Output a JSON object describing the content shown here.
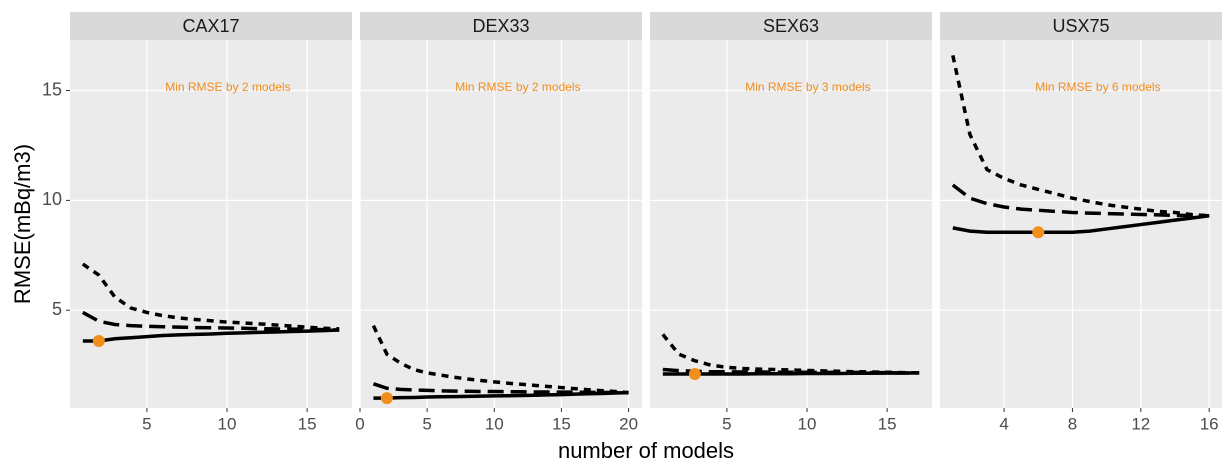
{
  "xlabel": "number of models",
  "ylabel": "RMSE(mBq/m3)",
  "chart_data": [
    {
      "type": "line",
      "title": "CAX17",
      "annotation": "Min RMSE by 2 models",
      "x": [
        1,
        2,
        3,
        4,
        5,
        6,
        7,
        8,
        9,
        10,
        11,
        12,
        13,
        14,
        15,
        16,
        17
      ],
      "xlim": [
        0.2,
        17.8
      ],
      "xticks": [
        5,
        10,
        15
      ],
      "ylim": [
        0.55,
        17.3
      ],
      "yticks": [
        5,
        10,
        15
      ],
      "grid": true,
      "series": [
        {
          "color": "#000000",
          "linestyle": "solid",
          "values": [
            3.6,
            3.6,
            3.7,
            3.75,
            3.8,
            3.85,
            3.88,
            3.9,
            3.92,
            3.95,
            3.97,
            3.99,
            4.01,
            4.03,
            4.05,
            4.07,
            4.1
          ]
        },
        {
          "color": "#000000",
          "linestyle": "longdash",
          "values": [
            4.9,
            4.5,
            4.35,
            4.3,
            4.27,
            4.25,
            4.23,
            4.21,
            4.2,
            4.19,
            4.18,
            4.16,
            4.15,
            4.14,
            4.13,
            4.12,
            4.1
          ]
        },
        {
          "color": "#000000",
          "linestyle": "dashed",
          "values": [
            7.1,
            6.6,
            5.6,
            5.1,
            4.9,
            4.75,
            4.65,
            4.58,
            4.52,
            4.46,
            4.42,
            4.38,
            4.33,
            4.28,
            4.23,
            4.18,
            4.15
          ]
        }
      ],
      "min_point": {
        "x": 2,
        "y": 3.6,
        "color": "#f28e1c"
      }
    },
    {
      "type": "line",
      "title": "DEX33",
      "annotation": "Min RMSE by 2 models",
      "x": [
        1,
        2,
        3,
        4,
        5,
        6,
        7,
        8,
        9,
        10,
        11,
        12,
        13,
        14,
        15,
        16,
        17,
        18,
        19,
        20
      ],
      "xlim": [
        0,
        21
      ],
      "xticks": [
        0,
        5,
        10,
        15,
        20
      ],
      "ylim": [
        0.55,
        17.3
      ],
      "yticks": [
        5,
        10,
        15
      ],
      "grid": true,
      "series": [
        {
          "color": "#000000",
          "linestyle": "solid",
          "values": [
            1.0,
            1.0,
            1.02,
            1.03,
            1.05,
            1.06,
            1.07,
            1.08,
            1.09,
            1.1,
            1.11,
            1.12,
            1.13,
            1.15,
            1.16,
            1.18,
            1.2,
            1.21,
            1.23,
            1.25
          ]
        },
        {
          "color": "#000000",
          "linestyle": "longdash",
          "values": [
            1.65,
            1.45,
            1.4,
            1.37,
            1.35,
            1.33,
            1.32,
            1.31,
            1.3,
            1.3,
            1.29,
            1.29,
            1.28,
            1.28,
            1.27,
            1.27,
            1.26,
            1.26,
            1.25,
            1.25
          ]
        },
        {
          "color": "#000000",
          "linestyle": "dashed",
          "values": [
            4.3,
            3.0,
            2.6,
            2.3,
            2.15,
            2.05,
            1.95,
            1.87,
            1.8,
            1.74,
            1.68,
            1.63,
            1.58,
            1.53,
            1.48,
            1.43,
            1.38,
            1.34,
            1.3,
            1.25
          ]
        }
      ],
      "min_point": {
        "x": 2,
        "y": 1.0,
        "color": "#f28e1c"
      }
    },
    {
      "type": "line",
      "title": "SEX63",
      "annotation": "Min RMSE by 3 models",
      "x": [
        1,
        2,
        3,
        4,
        5,
        6,
        7,
        8,
        9,
        10,
        11,
        12,
        13,
        14,
        15,
        16,
        17
      ],
      "xlim": [
        0.2,
        17.8
      ],
      "xticks": [
        5,
        10,
        15
      ],
      "ylim": [
        0.55,
        17.3
      ],
      "yticks": [
        5,
        10,
        15
      ],
      "grid": true,
      "series": [
        {
          "color": "#000000",
          "linestyle": "solid",
          "values": [
            2.1,
            2.1,
            2.1,
            2.1,
            2.1,
            2.1,
            2.11,
            2.11,
            2.11,
            2.12,
            2.12,
            2.12,
            2.13,
            2.13,
            2.14,
            2.14,
            2.15
          ]
        },
        {
          "color": "#000000",
          "linestyle": "longdash",
          "values": [
            2.3,
            2.25,
            2.22,
            2.2,
            2.2,
            2.19,
            2.19,
            2.18,
            2.18,
            2.18,
            2.17,
            2.17,
            2.17,
            2.16,
            2.16,
            2.15,
            2.15
          ]
        },
        {
          "color": "#000000",
          "linestyle": "dashed",
          "values": [
            3.9,
            3.0,
            2.7,
            2.5,
            2.4,
            2.35,
            2.32,
            2.3,
            2.28,
            2.26,
            2.24,
            2.22,
            2.2,
            2.19,
            2.18,
            2.16,
            2.15
          ]
        }
      ],
      "min_point": {
        "x": 3,
        "y": 2.1,
        "color": "#f28e1c"
      }
    },
    {
      "type": "line",
      "title": "USX75",
      "annotation": "Min RMSE by 6 models",
      "x": [
        1,
        2,
        3,
        4,
        5,
        6,
        7,
        8,
        9,
        10,
        11,
        12,
        13,
        14,
        15,
        16
      ],
      "xlim": [
        0.25,
        16.75
      ],
      "xticks": [
        4,
        8,
        12,
        16
      ],
      "ylim": [
        0.55,
        17.3
      ],
      "yticks": [
        5,
        10,
        15
      ],
      "grid": true,
      "series": [
        {
          "color": "#000000",
          "linestyle": "solid",
          "values": [
            8.75,
            8.6,
            8.55,
            8.55,
            8.55,
            8.55,
            8.55,
            8.55,
            8.6,
            8.7,
            8.8,
            8.9,
            9.0,
            9.1,
            9.2,
            9.3
          ]
        },
        {
          "color": "#000000",
          "linestyle": "longdash",
          "values": [
            10.7,
            10.1,
            9.85,
            9.7,
            9.6,
            9.55,
            9.5,
            9.45,
            9.42,
            9.4,
            9.38,
            9.36,
            9.34,
            9.32,
            9.31,
            9.3
          ]
        },
        {
          "color": "#000000",
          "linestyle": "dashed",
          "values": [
            16.6,
            13.0,
            11.4,
            11.0,
            10.7,
            10.5,
            10.3,
            10.1,
            9.95,
            9.8,
            9.7,
            9.6,
            9.5,
            9.45,
            9.35,
            9.3
          ]
        }
      ],
      "min_point": {
        "x": 6,
        "y": 8.55,
        "color": "#f28e1c"
      }
    }
  ]
}
